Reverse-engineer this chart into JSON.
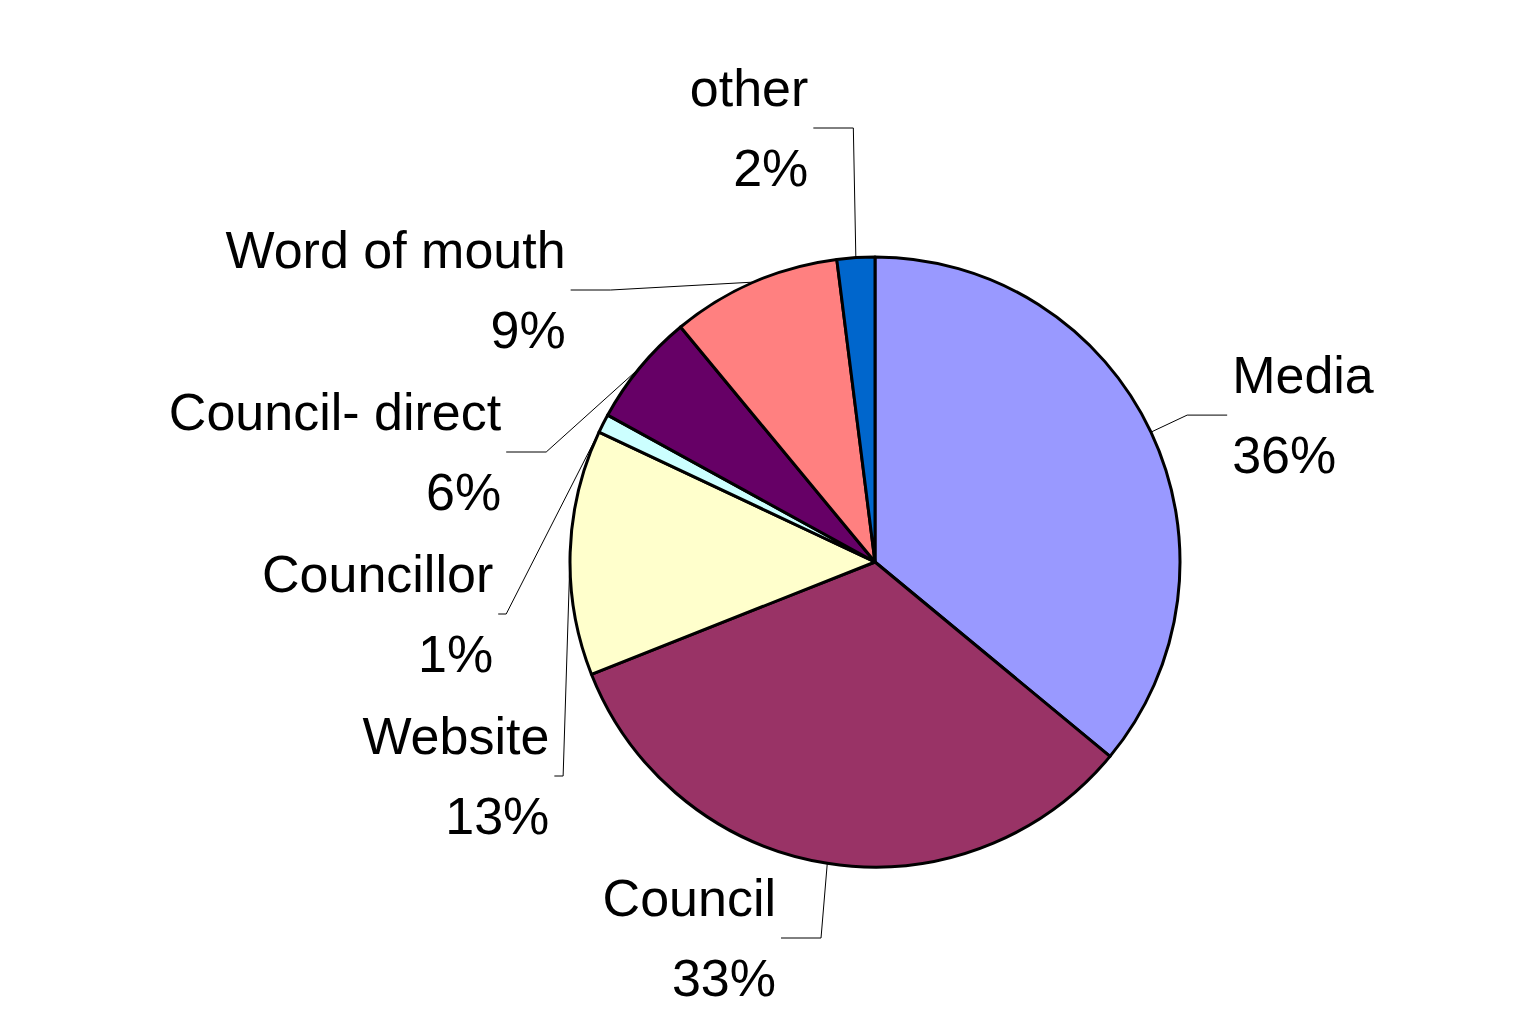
{
  "chart_data": {
    "type": "pie",
    "categories": [
      "Media",
      "Council",
      "Website",
      "Councillor",
      "Council- direct",
      "Word of mouth",
      "other"
    ],
    "values": [
      36,
      33,
      13,
      1,
      6,
      9,
      2
    ],
    "colors": [
      "#9999ff",
      "#993366",
      "#ffffcc",
      "#ccffff",
      "#660066",
      "#ff8080",
      "#0066cc"
    ],
    "value_labels": [
      "36%",
      "33%",
      "13%",
      "1%",
      "6%",
      "9%",
      "2%"
    ],
    "legend": false
  }
}
